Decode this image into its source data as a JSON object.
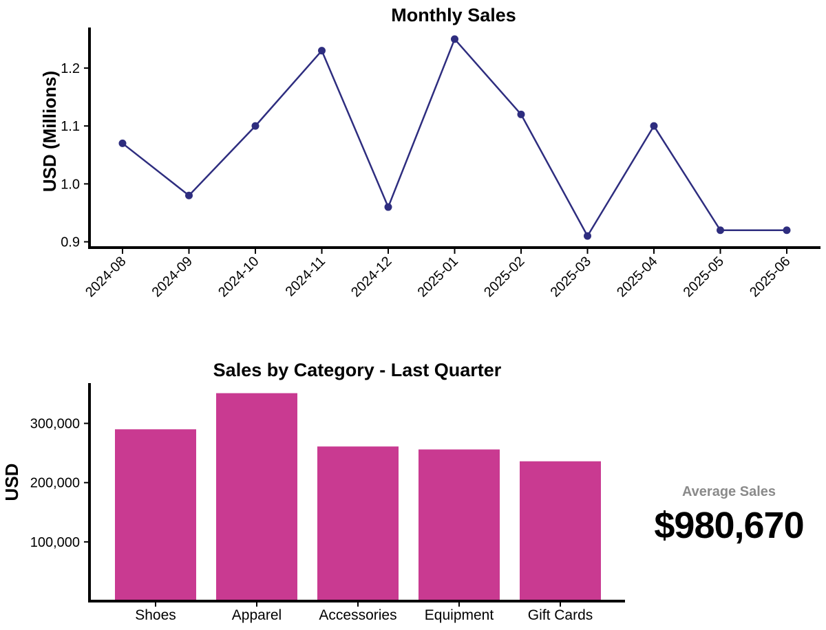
{
  "chart_data": [
    {
      "type": "line",
      "title": "Monthly Sales",
      "xlabel": "",
      "ylabel": "USD (Millions)",
      "categories": [
        "2024-08",
        "2024-09",
        "2024-10",
        "2024-11",
        "2024-12",
        "2025-01",
        "2025-02",
        "2025-03",
        "2025-04",
        "2025-05",
        "2025-06"
      ],
      "values": [
        1.07,
        0.98,
        1.1,
        1.23,
        0.96,
        1.25,
        1.12,
        0.91,
        1.1,
        0.92,
        0.92
      ],
      "ylim": [
        0.89,
        1.27
      ],
      "yticks": [
        0.9,
        1.0,
        1.1,
        1.2
      ],
      "ytick_labels": [
        "0.9",
        "1.0",
        "1.1",
        "1.2"
      ],
      "color": "#2e2d7f",
      "grid": false
    },
    {
      "type": "bar",
      "title": "Sales by Category - Last Quarter",
      "xlabel": "",
      "ylabel": "USD",
      "categories": [
        "Shoes",
        "Apparel",
        "Accessories",
        "Equipment",
        "Gift Cards"
      ],
      "values": [
        290000,
        351000,
        261000,
        256000,
        236000
      ],
      "ylim": [
        0,
        368000
      ],
      "yticks": [
        100000,
        200000,
        300000
      ],
      "ytick_labels": [
        "100,000",
        "200,000",
        "300,000"
      ],
      "color": "#c93a91",
      "grid": false
    }
  ],
  "kpi": {
    "label": "Average Sales",
    "value": "$980,670"
  }
}
